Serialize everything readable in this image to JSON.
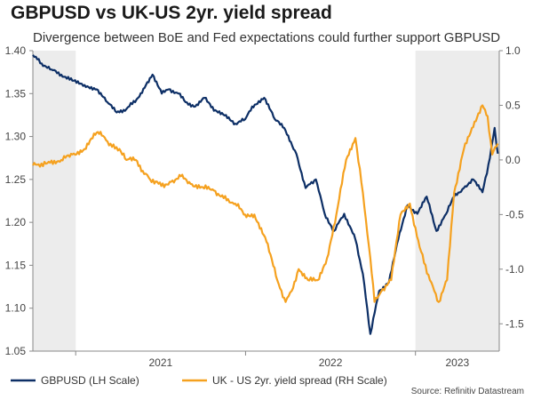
{
  "chart_data": {
    "type": "line",
    "title": "GBPUSD vs UK-US 2yr. yield spread",
    "subtitle": "Divergence between BoE and Fed expectations could further support GBPUSD",
    "x_range": [
      "2020-10-01",
      "2023-06-30"
    ],
    "x_tick_labels": [
      "2021",
      "2022",
      "2023"
    ],
    "shaded_periods": [
      {
        "start": "2020-10-01",
        "end": "2021-01-01"
      },
      {
        "start": "2023-01-01",
        "end": "2023-06-30"
      }
    ],
    "y_left": {
      "ylim": [
        1.05,
        1.4
      ],
      "ticks": [
        "1.05",
        "1.10",
        "1.15",
        "1.20",
        "1.25",
        "1.30",
        "1.35",
        "1.40"
      ]
    },
    "y_right": {
      "ylim": [
        -1.75,
        1.0
      ],
      "ticks": [
        "-1.5",
        "-1.0",
        "-0.5",
        "0.0",
        "0.5",
        "1.0"
      ]
    },
    "grid": false,
    "legend_position": "bottom",
    "colors": {
      "gbpusd": "#0d2f66",
      "spread": "#f5a11f",
      "shade": "#ececec"
    },
    "series": [
      {
        "name": "GBPUSD (LH Scale)",
        "axis": "left",
        "x": [
          "2020-10-01",
          "2020-10-20",
          "2020-11-10",
          "2020-12-01",
          "2020-12-25",
          "2021-01-20",
          "2021-02-15",
          "2021-03-10",
          "2021-03-30",
          "2021-04-20",
          "2021-05-15",
          "2021-06-01",
          "2021-06-15",
          "2021-07-05",
          "2021-07-20",
          "2021-08-10",
          "2021-08-25",
          "2021-09-15",
          "2021-10-05",
          "2021-10-25",
          "2021-11-20",
          "2021-12-10",
          "2021-12-31",
          "2022-01-15",
          "2022-02-10",
          "2022-03-05",
          "2022-03-25",
          "2022-04-20",
          "2022-05-10",
          "2022-06-01",
          "2022-06-20",
          "2022-07-10",
          "2022-08-01",
          "2022-08-25",
          "2022-09-10",
          "2022-09-26",
          "2022-10-15",
          "2022-11-05",
          "2022-11-25",
          "2022-12-15",
          "2023-01-05",
          "2023-01-25",
          "2023-02-15",
          "2023-03-08",
          "2023-03-25",
          "2023-04-15",
          "2023-05-05",
          "2023-05-25",
          "2023-06-10",
          "2023-06-20",
          "2023-06-27"
        ],
        "values": [
          1.395,
          1.385,
          1.378,
          1.372,
          1.365,
          1.36,
          1.355,
          1.34,
          1.328,
          1.332,
          1.345,
          1.36,
          1.372,
          1.35,
          1.355,
          1.35,
          1.34,
          1.335,
          1.345,
          1.33,
          1.325,
          1.315,
          1.32,
          1.335,
          1.345,
          1.32,
          1.31,
          1.28,
          1.24,
          1.25,
          1.21,
          1.19,
          1.21,
          1.18,
          1.14,
          1.07,
          1.12,
          1.13,
          1.18,
          1.22,
          1.21,
          1.23,
          1.19,
          1.21,
          1.23,
          1.24,
          1.25,
          1.235,
          1.275,
          1.31,
          1.28
        ]
      },
      {
        "name": "UK - US 2yr. yield spread (RH Scale)",
        "axis": "right",
        "x": [
          "2020-10-01",
          "2020-11-01",
          "2020-12-01",
          "2020-12-25",
          "2021-01-20",
          "2021-02-15",
          "2021-03-01",
          "2021-03-20",
          "2021-04-05",
          "2021-04-20",
          "2021-05-10",
          "2021-05-25",
          "2021-06-10",
          "2021-06-25",
          "2021-07-10",
          "2021-07-25",
          "2021-08-15",
          "2021-09-05",
          "2021-10-01",
          "2021-10-25",
          "2021-11-15",
          "2021-12-10",
          "2021-12-31",
          "2022-01-20",
          "2022-02-15",
          "2022-03-10",
          "2022-03-28",
          "2022-04-10",
          "2022-04-25",
          "2022-05-15",
          "2022-06-05",
          "2022-06-25",
          "2022-07-15",
          "2022-08-05",
          "2022-08-25",
          "2022-09-10",
          "2022-09-26",
          "2022-10-05",
          "2022-10-20",
          "2022-11-10",
          "2022-11-30",
          "2022-12-20",
          "2023-01-10",
          "2023-02-01",
          "2023-02-20",
          "2023-03-10",
          "2023-03-25",
          "2023-04-15",
          "2023-05-05",
          "2023-05-25",
          "2023-06-05",
          "2023-06-15",
          "2023-06-27"
        ],
        "values": [
          -0.05,
          -0.03,
          0.0,
          0.05,
          0.1,
          0.25,
          0.22,
          0.12,
          0.1,
          0.0,
          0.0,
          -0.1,
          -0.18,
          -0.2,
          -0.25,
          -0.2,
          -0.15,
          -0.22,
          -0.25,
          -0.28,
          -0.35,
          -0.4,
          -0.5,
          -0.5,
          -0.75,
          -1.1,
          -1.3,
          -1.2,
          -1.0,
          -1.1,
          -1.1,
          -0.9,
          -0.5,
          0.0,
          0.2,
          -0.3,
          -0.9,
          -1.3,
          -1.2,
          -1.1,
          -0.5,
          -0.4,
          -0.8,
          -1.1,
          -1.3,
          -1.1,
          -0.3,
          0.1,
          0.3,
          0.5,
          0.4,
          0.05,
          0.15
        ]
      }
    ],
    "source": "Source: Refinitiv Datastream"
  }
}
